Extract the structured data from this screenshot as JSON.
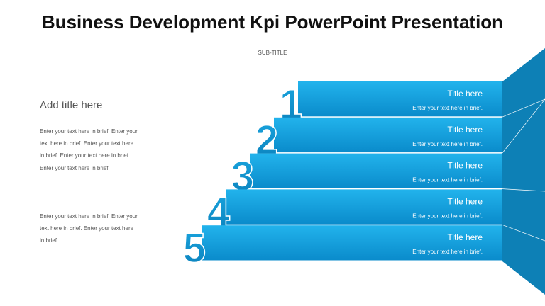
{
  "title": "Business Development Kpi PowerPoint Presentation",
  "subtitle": "SUB-TITLE",
  "left": {
    "heading": "Add title here",
    "paragraphs": [
      "Enter your text here in brief. Enter your text here in brief. Enter your text here in brief. Enter your text here in brief. Enter your text here in brief.",
      "Enter your text here in brief. Enter your text here in brief. Enter your text here in brief."
    ]
  },
  "steps": [
    {
      "number": "1",
      "title": "Title here",
      "text": "Enter your text here in brief."
    },
    {
      "number": "2",
      "title": "Title here",
      "text": "Enter your text here in brief."
    },
    {
      "number": "3",
      "title": "Title here",
      "text": "Enter your text here in brief."
    },
    {
      "number": "4",
      "title": "Title here",
      "text": "Enter your text here in brief."
    },
    {
      "number": "5",
      "title": "Title here",
      "text": "Enter your text here in brief."
    }
  ]
}
